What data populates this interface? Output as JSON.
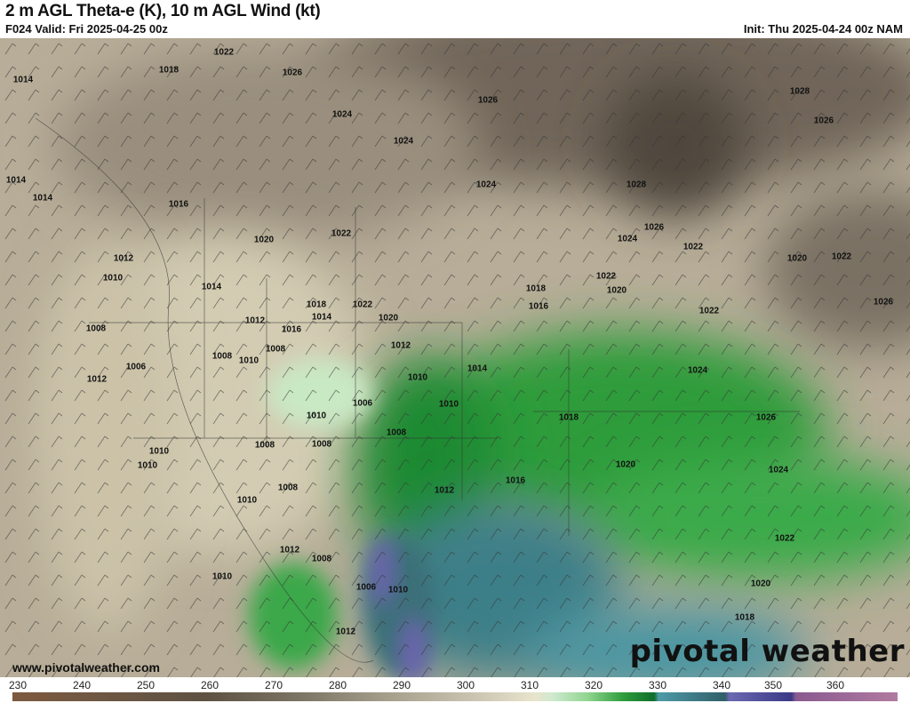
{
  "header": {
    "title": "2 m AGL Theta-e (K), 10 m AGL Wind (kt)",
    "valid": "F024 Valid: Fri 2025-04-25 00z",
    "init": "Init: Thu 2025-04-24 00z NAM"
  },
  "map": {
    "pressure_labels": [
      "1018",
      "1014",
      "1022",
      "1026",
      "1024",
      "1026",
      "1028",
      "1026",
      "1024",
      "1014",
      "1014",
      "1016",
      "1020",
      "1022",
      "1024",
      "1028",
      "1026",
      "1024",
      "1022",
      "1020",
      "1022",
      "1012",
      "1010",
      "1014",
      "1012",
      "1018",
      "1014",
      "1016",
      "1022",
      "1020",
      "1018",
      "1016",
      "1022",
      "1020",
      "1022",
      "1026",
      "1008",
      "1008",
      "1010",
      "1008",
      "1012",
      "1006",
      "1010",
      "1024",
      "1012",
      "1010",
      "1006",
      "1010",
      "1008",
      "1010",
      "1008",
      "1018",
      "1026",
      "1010",
      "1014",
      "1008",
      "1008",
      "1020",
      "1012",
      "1016",
      "1024",
      "1010",
      "1012",
      "1008",
      "1022",
      "1010",
      "1006",
      "1010",
      "1012",
      "1020",
      "1018"
    ],
    "url": "www.pivotalweather.com",
    "logo": "pivotal weather"
  },
  "colorbar": {
    "units": "K",
    "ticks": [
      "230",
      "240",
      "250",
      "260",
      "270",
      "280",
      "290",
      "300",
      "310",
      "320",
      "330",
      "340",
      "350",
      "360"
    ],
    "range": [
      230,
      370
    ],
    "colors": {
      "low": "#7d5a3f",
      "mid": "#c9c3b0",
      "green": "#2f9c3a",
      "teal": "#4f9aa8",
      "purple": "#3a3a86",
      "high": "#b07aa0"
    }
  }
}
